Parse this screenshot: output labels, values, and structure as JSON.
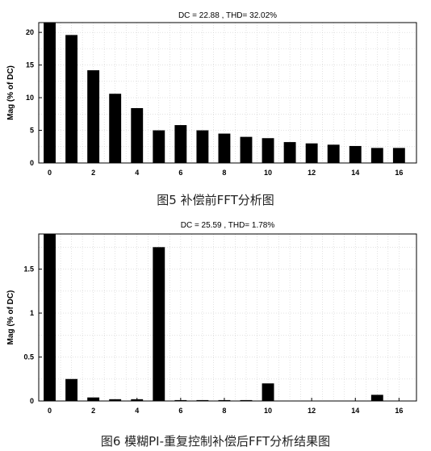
{
  "chart_data": [
    {
      "type": "bar",
      "title": "DC = 22.88 , THD= 32.02%",
      "ylabel": "Mag (% of DC)",
      "xlabel": "",
      "caption": "图5   补偿前FFT分析图",
      "x": [
        0,
        1,
        2,
        3,
        4,
        5,
        6,
        7,
        8,
        9,
        10,
        11,
        12,
        13,
        14,
        15,
        16
      ],
      "values": [
        21.5,
        19.6,
        14.2,
        10.6,
        8.4,
        5.0,
        5.8,
        5.0,
        4.5,
        4.0,
        3.8,
        3.2,
        3.0,
        2.8,
        2.6,
        2.3,
        2.3
      ],
      "xlim": [
        -0.5,
        16.8
      ],
      "ylim": [
        0,
        21.5
      ],
      "xticks": [
        0,
        2,
        4,
        6,
        8,
        10,
        12,
        14,
        16
      ],
      "xtick_labels": [
        "0",
        "2",
        "4",
        "6",
        "8",
        "10",
        "12",
        "14",
        "16"
      ],
      "yticks": [
        0,
        5,
        10,
        15,
        20
      ],
      "ytick_labels": [
        "0",
        "5",
        "10",
        "15",
        "20"
      ],
      "grid": true
    },
    {
      "type": "bar",
      "title": "DC = 25.59 , THD= 1.78%",
      "ylabel": "Mag (% of DC)",
      "xlabel": "",
      "caption": "图6   模糊PI-重复控制补偿后FFT分析结果图",
      "x": [
        0,
        1,
        2,
        3,
        4,
        5,
        6,
        7,
        8,
        9,
        10,
        11,
        12,
        13,
        14,
        15,
        16
      ],
      "values": [
        1.9,
        0.25,
        0.04,
        0.02,
        0.02,
        1.75,
        0.01,
        0.01,
        0.01,
        0.01,
        0.2,
        0.0,
        0.0,
        0.0,
        0.0,
        0.07,
        0.0
      ],
      "xlim": [
        -0.5,
        16.8
      ],
      "ylim": [
        0,
        1.9
      ],
      "xticks": [
        0,
        2,
        4,
        6,
        8,
        10,
        12,
        14,
        16
      ],
      "xtick_labels": [
        "0",
        "2",
        "4",
        "6",
        "8",
        "10",
        "12",
        "14",
        "16"
      ],
      "yticks": [
        0,
        0.5,
        1,
        1.5
      ],
      "ytick_labels": [
        "0",
        "0.5",
        "1",
        "1.5"
      ],
      "grid": true
    }
  ]
}
